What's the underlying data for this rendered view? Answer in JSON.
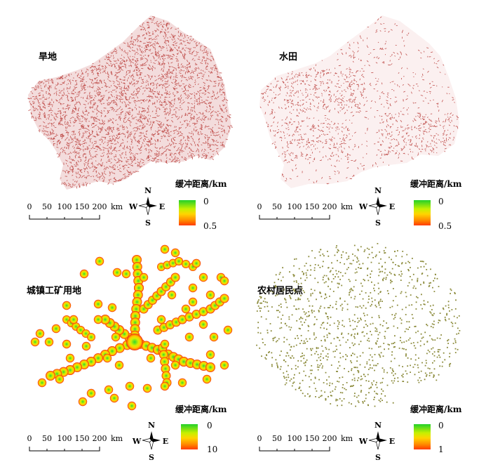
{
  "panels": [
    {
      "name": "dryland",
      "title": "旱地",
      "scale_labels": [
        "0",
        "50",
        "100",
        "150",
        "200"
      ],
      "scale_unit": "km",
      "compass": {
        "n": "N",
        "s": "S",
        "e": "E",
        "w": "W"
      },
      "legend": {
        "title": "缓冲距离/km",
        "min": "0",
        "max": "0.5"
      },
      "style": "lines",
      "color": "#c0504d"
    },
    {
      "name": "paddy",
      "title": "水田",
      "scale_labels": [
        "0",
        "50",
        "100",
        "150",
        "200"
      ],
      "scale_unit": "km",
      "compass": {
        "n": "N",
        "s": "S",
        "e": "E",
        "w": "W"
      },
      "legend": {
        "title": "缓冲距离/km",
        "min": "0",
        "max": "0.5"
      },
      "style": "sparse-lines",
      "color": "#c0504d"
    },
    {
      "name": "urban-industrial",
      "title": "城镇工矿用地",
      "scale_labels": [
        "0",
        "50",
        "100",
        "150",
        "200"
      ],
      "scale_unit": "km",
      "compass": {
        "n": "N",
        "s": "S",
        "e": "E",
        "w": "W"
      },
      "legend": {
        "title": "缓冲距离/km",
        "min": "0",
        "max": "10"
      },
      "style": "blobs",
      "color": "#e8201a"
    },
    {
      "name": "rural-settlement",
      "title": "农村居民点",
      "scale_labels": [
        "0",
        "50",
        "100",
        "150",
        "200"
      ],
      "scale_unit": "km",
      "compass": {
        "n": "N",
        "s": "S",
        "e": "E",
        "w": "W"
      },
      "legend": {
        "title": "缓冲距离/km",
        "min": "0",
        "max": "1"
      },
      "style": "dots",
      "color": "#8b8a3a"
    }
  ]
}
